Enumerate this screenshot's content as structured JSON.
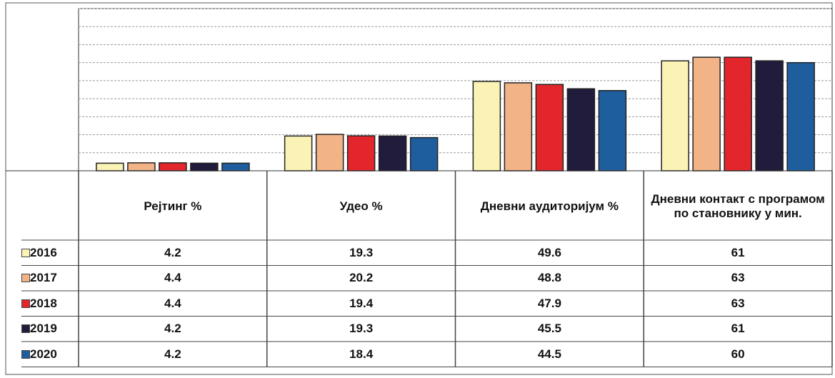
{
  "chart_data": {
    "type": "bar",
    "categories": [
      "Рејтинг %",
      "Удео %",
      "Дневни аудиторијум %",
      "Дневни контакт с програмом по становнику у мин."
    ],
    "series": [
      {
        "name": "2016",
        "color": "#fbf3b6",
        "values": [
          4.2,
          19.3,
          49.6,
          61
        ]
      },
      {
        "name": "2017",
        "color": "#f2b487",
        "values": [
          4.4,
          20.2,
          48.8,
          63
        ]
      },
      {
        "name": "2018",
        "color": "#e3262c",
        "values": [
          4.4,
          19.4,
          47.9,
          63
        ]
      },
      {
        "name": "2019",
        "color": "#211b3c",
        "values": [
          4.2,
          19.3,
          45.5,
          61
        ]
      },
      {
        "name": "2020",
        "color": "#1f5e9e",
        "values": [
          4.2,
          18.4,
          44.5,
          60
        ]
      }
    ],
    "ylim": [
      0,
      90
    ],
    "yticks": [
      0,
      10,
      20,
      30,
      40,
      50,
      60,
      70,
      80,
      90
    ],
    "grid": true
  }
}
